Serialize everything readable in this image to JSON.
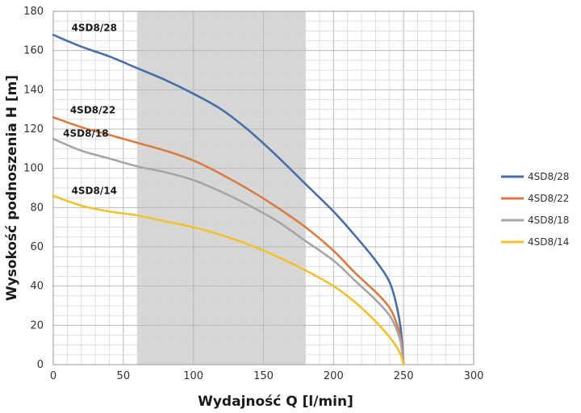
{
  "chart_data": {
    "type": "line",
    "xlabel": "Wydajność Q [l/min]",
    "ylabel": "Wysokość podnoszenia H [m]",
    "xlim": [
      0,
      300
    ],
    "ylim": [
      0,
      180
    ],
    "xticks": [
      "0",
      "50",
      "100",
      "150",
      "200",
      "250",
      "300"
    ],
    "yticks": [
      "0",
      "20",
      "40",
      "60",
      "80",
      "100",
      "120",
      "140",
      "160",
      "180"
    ],
    "grid": true,
    "legend": "right",
    "shaded_range_x": [
      60,
      180
    ],
    "shaded_color": "#d6d6d6",
    "series": [
      {
        "name": "4SD8/28",
        "color": "#4a6fa5",
        "label_at": [
          13,
          170
        ],
        "x": [
          0,
          20,
          40,
          60,
          80,
          100,
          120,
          140,
          160,
          180,
          200,
          215,
          230,
          240,
          245,
          248,
          250
        ],
        "y": [
          168,
          162,
          157,
          151,
          145,
          138,
          130,
          119,
          106,
          92,
          78,
          66,
          53,
          42,
          30,
          18,
          0
        ]
      },
      {
        "name": "4SD8/22",
        "color": "#d97b43",
        "label_at": [
          12,
          128
        ],
        "x": [
          0,
          20,
          40,
          60,
          80,
          100,
          120,
          140,
          160,
          180,
          200,
          215,
          230,
          240,
          245,
          248,
          250
        ],
        "y": [
          126,
          121,
          117,
          113,
          109,
          104,
          97,
          89,
          80,
          70,
          58,
          47,
          37,
          29,
          21,
          13,
          0
        ]
      },
      {
        "name": "4SD8/18",
        "color": "#a6a6a6",
        "label_at": [
          7,
          116
        ],
        "x": [
          0,
          20,
          40,
          60,
          80,
          100,
          120,
          140,
          160,
          180,
          200,
          215,
          230,
          240,
          245,
          248,
          250
        ],
        "y": [
          115,
          109,
          105,
          101,
          98,
          94,
          88,
          81,
          73,
          63,
          53,
          43,
          33,
          25,
          18,
          11,
          0
        ]
      },
      {
        "name": "4SD8/14",
        "color": "#f2c12e",
        "label_at": [
          13,
          87
        ],
        "x": [
          0,
          20,
          40,
          60,
          80,
          100,
          120,
          140,
          160,
          180,
          200,
          215,
          230,
          240,
          245,
          248,
          250
        ],
        "y": [
          86,
          81,
          78,
          76,
          73,
          70,
          66,
          61,
          55,
          48,
          40,
          32,
          22,
          14,
          9,
          5,
          0
        ]
      }
    ]
  }
}
